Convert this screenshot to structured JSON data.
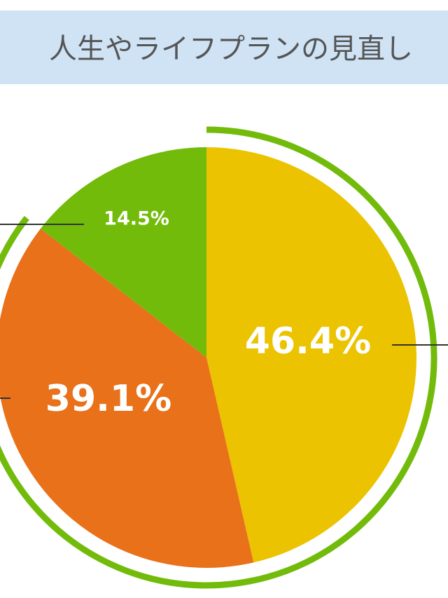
{
  "chart_data": {
    "type": "pie",
    "title": "人生やライフプランの見直し",
    "values": [
      46.4,
      39.1,
      14.5
    ],
    "value_labels": [
      "46.4%",
      "39.1%",
      "14.5%"
    ],
    "colors": [
      "#ebc300",
      "#e8711a",
      "#72bb0a"
    ]
  }
}
